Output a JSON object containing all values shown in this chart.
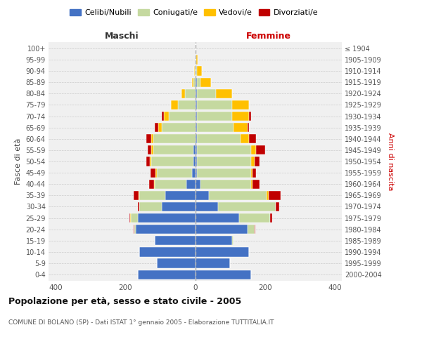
{
  "age_groups": [
    "0-4",
    "5-9",
    "10-14",
    "15-19",
    "20-24",
    "25-29",
    "30-34",
    "35-39",
    "40-44",
    "45-49",
    "50-54",
    "55-59",
    "60-64",
    "65-69",
    "70-74",
    "75-79",
    "80-84",
    "85-89",
    "90-94",
    "95-99",
    "100+"
  ],
  "birth_years": [
    "2000-2004",
    "1995-1999",
    "1990-1994",
    "1985-1989",
    "1980-1984",
    "1975-1979",
    "1970-1974",
    "1965-1969",
    "1960-1964",
    "1955-1959",
    "1950-1954",
    "1945-1949",
    "1940-1944",
    "1935-1939",
    "1930-1934",
    "1925-1929",
    "1920-1924",
    "1915-1919",
    "1910-1914",
    "1905-1909",
    "≤ 1904"
  ],
  "males": {
    "celibe": [
      165,
      110,
      160,
      115,
      170,
      165,
      95,
      85,
      25,
      10,
      5,
      5,
      0,
      0,
      0,
      0,
      0,
      0,
      0,
      0,
      0
    ],
    "coniugato": [
      0,
      0,
      0,
      0,
      5,
      20,
      65,
      75,
      90,
      100,
      120,
      115,
      120,
      95,
      75,
      50,
      30,
      5,
      2,
      0,
      0
    ],
    "vedovo": [
      0,
      0,
      0,
      0,
      0,
      2,
      0,
      2,
      2,
      3,
      5,
      5,
      5,
      10,
      15,
      20,
      10,
      5,
      2,
      0,
      0
    ],
    "divorziato": [
      0,
      0,
      0,
      0,
      2,
      2,
      5,
      15,
      15,
      15,
      10,
      10,
      15,
      10,
      5,
      0,
      0,
      0,
      0,
      0,
      0
    ]
  },
  "females": {
    "nubile": [
      160,
      100,
      155,
      105,
      150,
      125,
      65,
      40,
      15,
      5,
      5,
      5,
      5,
      5,
      5,
      5,
      5,
      5,
      0,
      0,
      0
    ],
    "coniugata": [
      0,
      0,
      0,
      5,
      20,
      90,
      165,
      165,
      145,
      155,
      155,
      155,
      125,
      105,
      100,
      100,
      55,
      10,
      5,
      3,
      0
    ],
    "vedova": [
      0,
      0,
      0,
      0,
      0,
      0,
      0,
      5,
      5,
      5,
      10,
      15,
      25,
      40,
      50,
      50,
      45,
      30,
      15,
      5,
      0
    ],
    "divorziata": [
      0,
      0,
      0,
      0,
      2,
      5,
      10,
      35,
      20,
      10,
      15,
      25,
      20,
      5,
      5,
      0,
      0,
      0,
      0,
      0,
      0
    ]
  },
  "colors": {
    "celibe": "#4472c4",
    "coniugato": "#c5d9a0",
    "vedovo": "#ffc000",
    "divorziato": "#c00000"
  },
  "title": "Popolazione per età, sesso e stato civile - 2005",
  "subtitle": "COMUNE DI BOLANO (SP) - Dati ISTAT 1° gennaio 2005 - Elaborazione TUTTITALIA.IT",
  "xlabel_left": "Maschi",
  "xlabel_right": "Femmine",
  "ylabel_left": "Fasce di età",
  "ylabel_right": "Anni di nascita",
  "legend_labels": [
    "Celibi/Nubili",
    "Coniugati/e",
    "Vedovi/e",
    "Divorziati/e"
  ],
  "xlim": 420,
  "background_color": "#ffffff",
  "plot_bg": "#f0f0f0"
}
